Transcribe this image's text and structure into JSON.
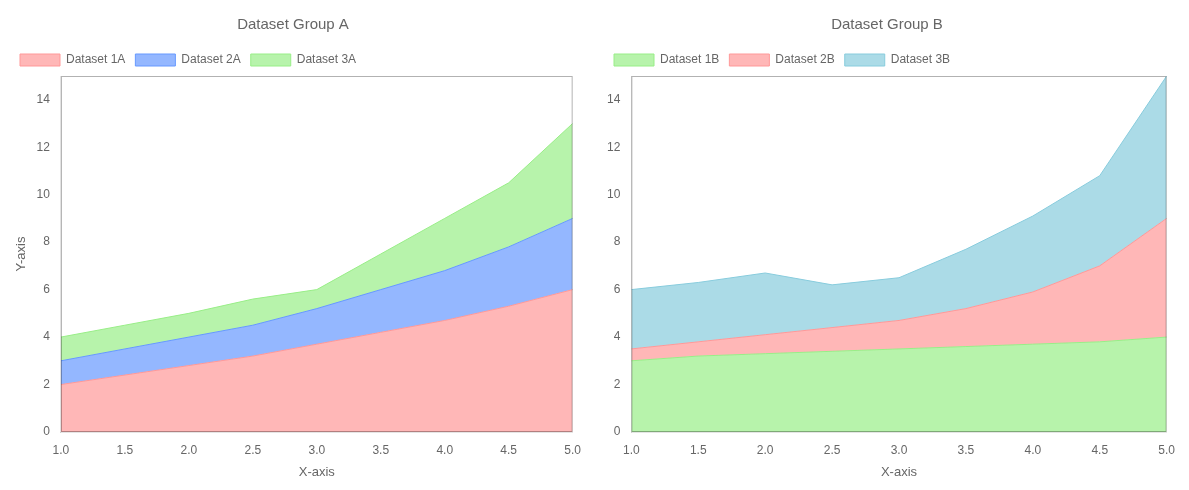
{
  "chart_data": [
    {
      "type": "area",
      "title": "Dataset Group A",
      "xlabel": "X-axis",
      "ylabel": "Y-axis",
      "x": [
        1.0,
        1.5,
        2.0,
        2.5,
        3.0,
        3.5,
        4.0,
        4.5,
        5.0
      ],
      "series": [
        {
          "name": "Dataset 1A",
          "color": "#ff9999",
          "values": [
            2.0,
            2.4,
            2.8,
            3.2,
            3.7,
            4.2,
            4.7,
            5.3,
            6.0
          ]
        },
        {
          "name": "Dataset 2A",
          "color": "#6699ff",
          "values": [
            1.0,
            1.1,
            1.2,
            1.3,
            1.5,
            1.8,
            2.1,
            2.5,
            3.0
          ]
        },
        {
          "name": "Dataset 3A",
          "color": "#99ee88",
          "values": [
            1.0,
            1.0,
            1.0,
            1.1,
            0.8,
            1.5,
            2.2,
            2.7,
            4.0
          ]
        }
      ],
      "xlim": [
        1,
        5
      ],
      "xticks": [
        {
          "value": 1,
          "label": "1.0"
        },
        {
          "value": 1.5,
          "label": "1.5"
        },
        {
          "value": 2,
          "label": "2.0"
        },
        {
          "value": 2.5,
          "label": "2.5"
        },
        {
          "value": 3,
          "label": "3.0"
        },
        {
          "value": 3.5,
          "label": "3.5"
        },
        {
          "value": 4,
          "label": "4.0"
        },
        {
          "value": 4.5,
          "label": "4.5"
        },
        {
          "value": 5,
          "label": "5.0"
        }
      ],
      "ylim": [
        0,
        15
      ],
      "yticks": [
        0,
        2,
        4,
        6,
        8,
        10,
        12,
        14
      ],
      "stacked": true,
      "grid": false,
      "legend": "upper left"
    },
    {
      "type": "area",
      "title": "Dataset Group B",
      "xlabel": "X-axis",
      "x": [
        1.0,
        1.5,
        2.0,
        2.5,
        3.0,
        3.5,
        4.0,
        4.5,
        5.0
      ],
      "series": [
        {
          "name": "Dataset 1B",
          "color": "#99ee88",
          "values": [
            3.0,
            3.2,
            3.3,
            3.4,
            3.5,
            3.6,
            3.7,
            3.8,
            4.0
          ]
        },
        {
          "name": "Dataset 2B",
          "color": "#ff9999",
          "values": [
            0.5,
            0.6,
            0.8,
            1.0,
            1.2,
            1.6,
            2.2,
            3.2,
            5.0
          ]
        },
        {
          "name": "Dataset 3B",
          "color": "#88ccdd",
          "values": [
            2.5,
            2.5,
            2.6,
            1.8,
            1.8,
            2.5,
            3.2,
            3.8,
            6.0
          ]
        }
      ],
      "xlim": [
        1,
        5
      ],
      "xticks": [
        {
          "value": 1,
          "label": "1.0"
        },
        {
          "value": 1.5,
          "label": "1.5"
        },
        {
          "value": 2,
          "label": "2.0"
        },
        {
          "value": 2.5,
          "label": "2.5"
        },
        {
          "value": 3,
          "label": "3.0"
        },
        {
          "value": 3.5,
          "label": "3.5"
        },
        {
          "value": 4,
          "label": "4.0"
        },
        {
          "value": 4.5,
          "label": "4.5"
        },
        {
          "value": 5,
          "label": "5.0"
        }
      ],
      "ylim": [
        0,
        15
      ],
      "yticks": [
        0,
        2,
        4,
        6,
        8,
        10,
        12,
        14
      ],
      "stacked": true,
      "grid": false,
      "legend": "upper left"
    }
  ]
}
